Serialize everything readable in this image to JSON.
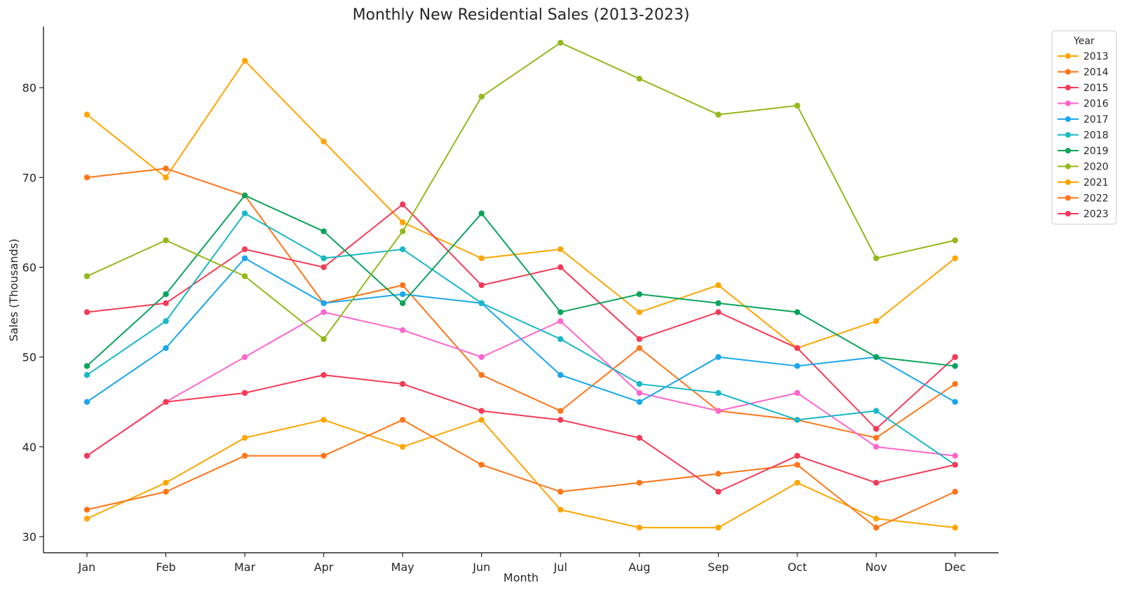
{
  "chart_data": {
    "type": "line",
    "title": "Monthly New Residential Sales (2013-2023)",
    "xlabel": "Month",
    "ylabel": "Sales (Thousands)",
    "categories": [
      "Jan",
      "Feb",
      "Mar",
      "Apr",
      "May",
      "Jun",
      "Jul",
      "Aug",
      "Sep",
      "Oct",
      "Nov",
      "Dec"
    ],
    "ylim": [
      28.2,
      86.8
    ],
    "yticks": [
      30,
      40,
      50,
      60,
      70,
      80
    ],
    "grid": false,
    "legend": {
      "title": "Year",
      "placement": "outside-top-right"
    },
    "series": [
      {
        "name": "2013",
        "color": "#FFA500",
        "values": [
          77,
          70,
          83,
          74,
          65,
          61,
          62,
          55,
          58,
          51,
          54,
          61
        ]
      },
      {
        "name": "2014",
        "color": "#FF7518",
        "values": [
          70,
          71,
          68,
          56,
          58,
          48,
          44,
          51,
          44,
          43,
          41,
          47
        ]
      },
      {
        "name": "2015",
        "color": "#F53B57",
        "values": [
          55,
          56,
          62,
          60,
          67,
          58,
          60,
          52,
          55,
          51,
          42,
          50
        ]
      },
      {
        "name": "2016",
        "color": "#FF66CC",
        "values": [
          39,
          45,
          50,
          55,
          53,
          50,
          54,
          46,
          44,
          46,
          40,
          39
        ]
      },
      {
        "name": "2017",
        "color": "#1AA7EC",
        "values": [
          45,
          51,
          61,
          56,
          57,
          56,
          48,
          45,
          50,
          49,
          50,
          45
        ]
      },
      {
        "name": "2018",
        "color": "#17B8C8",
        "values": [
          48,
          54,
          66,
          61,
          62,
          56,
          52,
          47,
          46,
          43,
          44,
          38
        ]
      },
      {
        "name": "2019",
        "color": "#0BA35A",
        "values": [
          49,
          57,
          68,
          64,
          56,
          66,
          55,
          57,
          56,
          55,
          50,
          49
        ]
      },
      {
        "name": "2020",
        "color": "#93B91C",
        "values": [
          59,
          63,
          59,
          52,
          64,
          79,
          85,
          81,
          77,
          78,
          61,
          63
        ]
      },
      {
        "name": "2021",
        "color": "#FFA500",
        "values": [
          32,
          36,
          41,
          43,
          40,
          43,
          33,
          31,
          31,
          36,
          32,
          31
        ]
      },
      {
        "name": "2022",
        "color": "#FF7518",
        "values": [
          33,
          35,
          39,
          39,
          43,
          38,
          35,
          36,
          37,
          38,
          31,
          35
        ]
      },
      {
        "name": "2023",
        "color": "#F53B57",
        "values": [
          39,
          45,
          46,
          48,
          47,
          44,
          43,
          41,
          35,
          39,
          36,
          38
        ]
      }
    ]
  }
}
